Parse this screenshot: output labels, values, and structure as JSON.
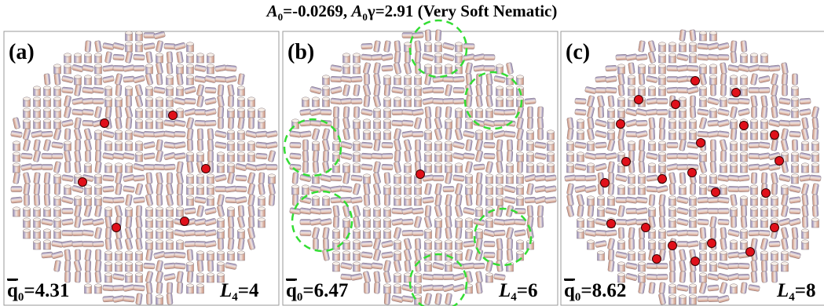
{
  "title": [
    "A",
    "0",
    "=-0.0269, ",
    "A",
    "0",
    "γ=2.91 (Very Soft Nematic)"
  ],
  "panels": [
    {
      "label": "(a)",
      "q": [
        "q",
        "0",
        "=4.31"
      ],
      "L": [
        "L",
        "4",
        "=4"
      ]
    },
    {
      "label": "(b)",
      "q": [
        "q",
        "0",
        "=6.47"
      ],
      "L": [
        "L",
        "4",
        "=6"
      ]
    },
    {
      "label": "(c)",
      "q": [
        "q",
        "0",
        "=8.62"
      ],
      "L": [
        "L",
        "4",
        "=8"
      ]
    }
  ]
}
